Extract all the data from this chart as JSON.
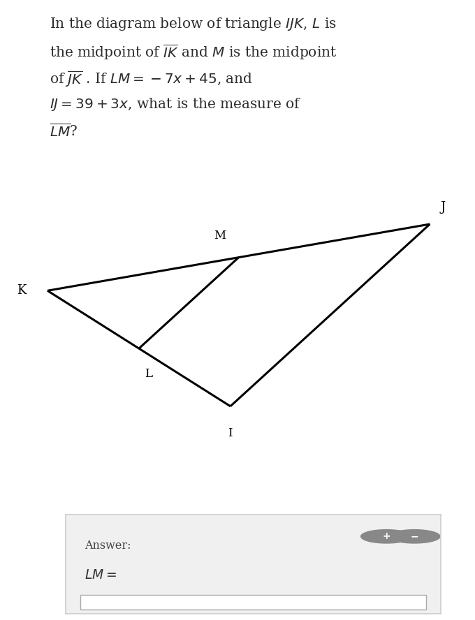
{
  "bg_color": "#ffffff",
  "text_color": "#2c2c2c",
  "line_width": 2.2,
  "font_size_vertex": 12,
  "K": [
    0.1,
    0.595
  ],
  "J": [
    0.905,
    0.785
  ],
  "I": [
    0.485,
    0.265
  ],
  "answer_box_color": "#f0f0f0",
  "answer_border_color": "#cccccc",
  "plus_minus_color": "#888888"
}
